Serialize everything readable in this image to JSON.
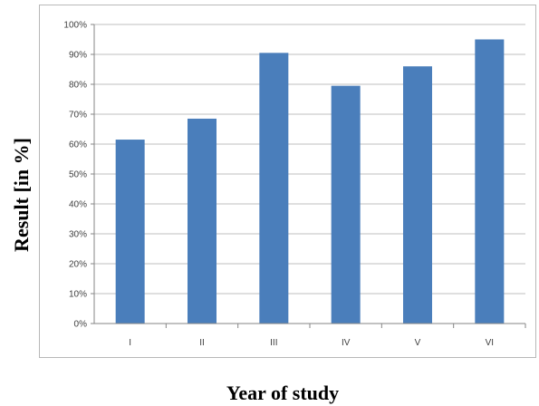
{
  "chart_data": {
    "type": "bar",
    "categories": [
      "I",
      "II",
      "III",
      "IV",
      "V",
      "VI"
    ],
    "values": [
      61.5,
      68.5,
      90.5,
      79.5,
      86,
      95
    ],
    "title": "",
    "xlabel": "Year of study",
    "ylabel": "Result  [in %]",
    "ylim": [
      0,
      100
    ],
    "yticks": [
      "0%",
      "10%",
      "20%",
      "30%",
      "40%",
      "50%",
      "60%",
      "70%",
      "80%",
      "90%",
      "100%"
    ],
    "grid": true,
    "legend": "none",
    "colors": {
      "bar": "#4a7ebb",
      "grid": "#bfbfbf",
      "axis": "#868686"
    }
  }
}
